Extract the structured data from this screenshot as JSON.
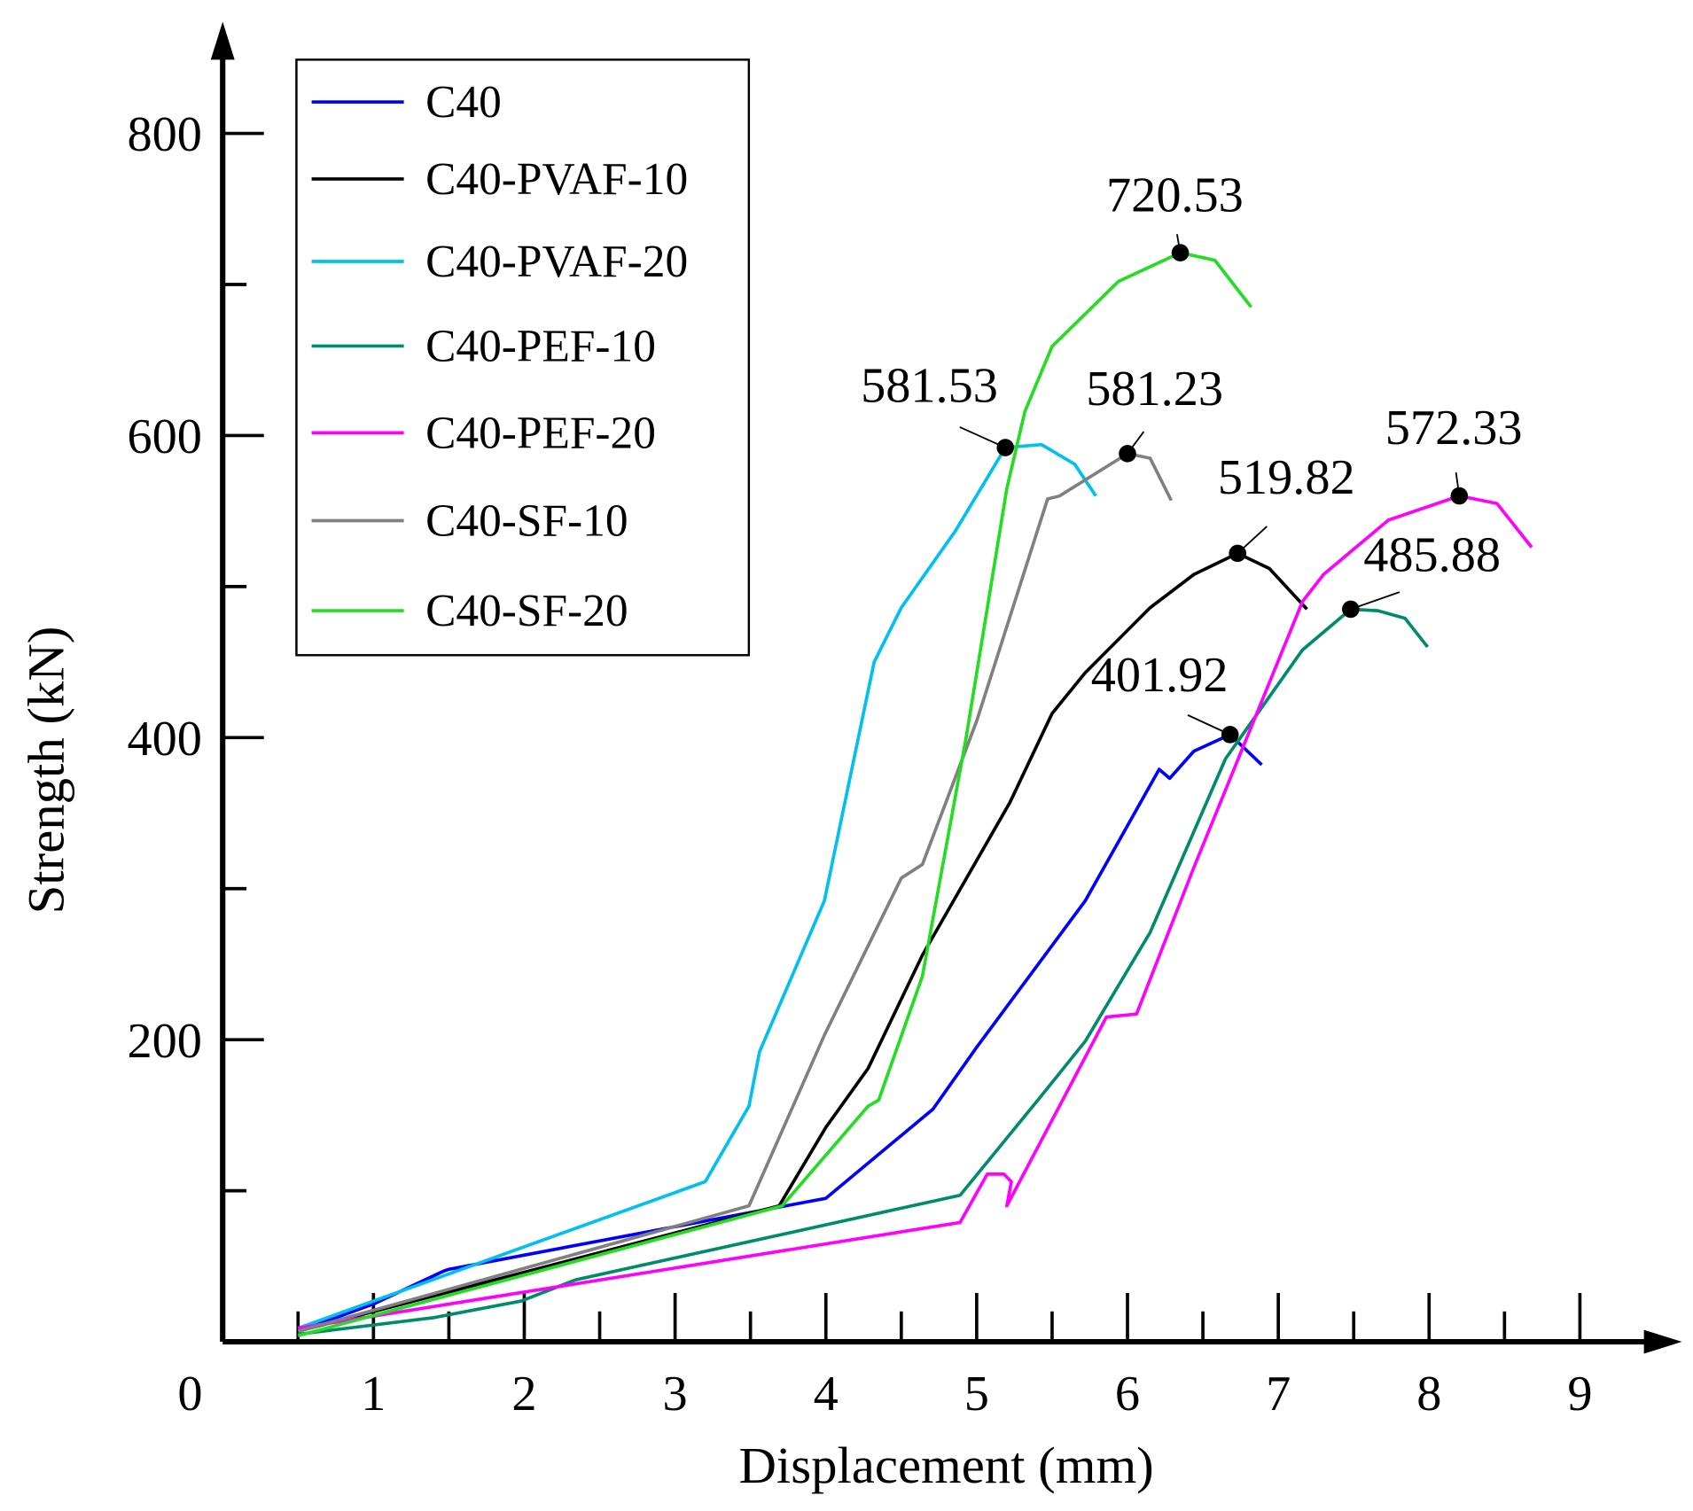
{
  "chart_data": {
    "type": "line",
    "title": "",
    "xlabel": "Displacement (mm)",
    "ylabel": "Strength (kN)",
    "xlim": [
      0,
      9.5
    ],
    "ylim": [
      0,
      850
    ],
    "x_ticks": [
      "0",
      "1",
      "2",
      "3",
      "4",
      "5",
      "6",
      "7",
      "8",
      "9"
    ],
    "y_ticks": [
      "0",
      "200",
      "400",
      "600",
      "800"
    ],
    "grid": false,
    "legend_position": "top-left",
    "series": [
      {
        "name": "C40",
        "color": "#0000ff",
        "points": [
          [
            0.5,
            7
          ],
          [
            1.0,
            25
          ],
          [
            1.47,
            47
          ],
          [
            1.5,
            48
          ],
          [
            4.0,
            95
          ],
          [
            4.71,
            154
          ],
          [
            5.0,
            195
          ],
          [
            5.72,
            292
          ],
          [
            6.21,
            379
          ],
          [
            6.28,
            373
          ],
          [
            6.44,
            391
          ],
          [
            6.68,
            402
          ],
          [
            6.89,
            382
          ]
        ]
      },
      {
        "name": "C40-PVAF-10",
        "color": "#000000",
        "points": [
          [
            0.5,
            7
          ],
          [
            3.69,
            90
          ],
          [
            4.0,
            142
          ],
          [
            4.28,
            181
          ],
          [
            4.64,
            256
          ],
          [
            5.22,
            357
          ],
          [
            5.5,
            416
          ],
          [
            5.72,
            443
          ],
          [
            6.15,
            486
          ],
          [
            6.44,
            508
          ],
          [
            6.73,
            522
          ],
          [
            6.94,
            512
          ],
          [
            7.19,
            485
          ]
        ]
      },
      {
        "name": "C40-PVAF-20",
        "color": "#00c0f0",
        "points": [
          [
            0.5,
            9
          ],
          [
            3.2,
            106
          ],
          [
            3.49,
            156
          ],
          [
            3.56,
            192
          ],
          [
            3.99,
            292
          ],
          [
            4.32,
            450
          ],
          [
            4.5,
            486
          ],
          [
            4.86,
            537
          ],
          [
            5.19,
            592
          ],
          [
            5.43,
            594
          ],
          [
            5.65,
            581
          ],
          [
            5.79,
            560
          ]
        ]
      },
      {
        "name": "C40-PEF-10",
        "color": "#008b6a",
        "points": [
          [
            0.5,
            5
          ],
          [
            1.4,
            16
          ],
          [
            1.98,
            27
          ],
          [
            2.34,
            41
          ],
          [
            4.89,
            97
          ],
          [
            5.43,
            163
          ],
          [
            5.72,
            199
          ],
          [
            6.15,
            271
          ],
          [
            6.65,
            386
          ],
          [
            7.16,
            458
          ],
          [
            7.48,
            485
          ],
          [
            7.66,
            484
          ],
          [
            7.84,
            479
          ],
          [
            7.99,
            460
          ]
        ]
      },
      {
        "name": "C40-PEF-20",
        "color": "#ff00ff",
        "points": [
          [
            0.5,
            9
          ],
          [
            4.89,
            79
          ],
          [
            5.07,
            111
          ],
          [
            5.18,
            111
          ],
          [
            5.23,
            106
          ],
          [
            5.2,
            90
          ],
          [
            5.86,
            215
          ],
          [
            6.06,
            217
          ],
          [
            6.44,
            314
          ],
          [
            7.16,
            490
          ],
          [
            7.3,
            508
          ],
          [
            7.73,
            544
          ],
          [
            8.2,
            560
          ],
          [
            8.45,
            555
          ],
          [
            8.68,
            526
          ]
        ]
      },
      {
        "name": "C40-SF-10",
        "color": "#808080",
        "points": [
          [
            0.5,
            7
          ],
          [
            3.49,
            90
          ],
          [
            3.99,
            203
          ],
          [
            4.5,
            307
          ],
          [
            4.64,
            316
          ],
          [
            5.0,
            411
          ],
          [
            5.47,
            558
          ],
          [
            5.55,
            560
          ],
          [
            6.0,
            588
          ],
          [
            6.15,
            585
          ],
          [
            6.29,
            557
          ]
        ]
      },
      {
        "name": "C40-SF-20",
        "color": "#22dd22",
        "points": [
          [
            0.5,
            4
          ],
          [
            3.71,
            90
          ],
          [
            4.28,
            156
          ],
          [
            4.35,
            160
          ],
          [
            4.64,
            242
          ],
          [
            4.93,
            400
          ],
          [
            5.2,
            565
          ],
          [
            5.32,
            616
          ],
          [
            5.5,
            659
          ],
          [
            5.94,
            702
          ],
          [
            6.35,
            721
          ],
          [
            6.58,
            716
          ],
          [
            6.82,
            685
          ]
        ]
      }
    ],
    "annotations": [
      {
        "text": "720.53",
        "x": 6.35,
        "y": 721
      },
      {
        "text": "581.53",
        "x": 5.19,
        "y": 592
      },
      {
        "text": "581.23",
        "x": 6.0,
        "y": 588
      },
      {
        "text": "519.82",
        "x": 6.73,
        "y": 522
      },
      {
        "text": "572.33",
        "x": 8.2,
        "y": 560
      },
      {
        "text": "485.88",
        "x": 7.48,
        "y": 485
      },
      {
        "text": "401.92",
        "x": 6.68,
        "y": 402
      }
    ]
  }
}
